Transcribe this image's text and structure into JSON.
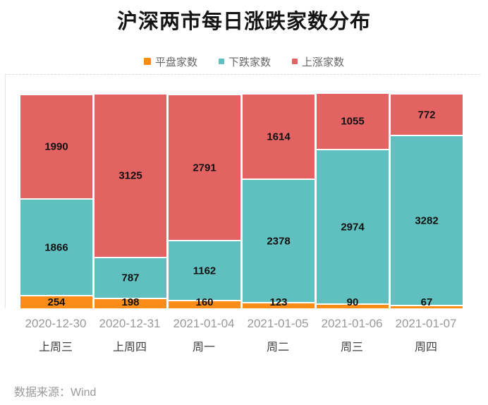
{
  "title": "沪深两市每日涨跌家数分布",
  "source": "数据来源：Wind",
  "legend": [
    {
      "label": "平盘家数",
      "color": "#FA8C17"
    },
    {
      "label": "下跌家数",
      "color": "#60BFBF"
    },
    {
      "label": "上涨家数",
      "color": "#E36363"
    }
  ],
  "chart_data": {
    "type": "bar",
    "stacked": true,
    "title": "沪深两市每日涨跌家数分布",
    "categories": [
      "2020-12-30",
      "2020-12-31",
      "2021-01-04",
      "2021-01-05",
      "2021-01-06",
      "2021-01-07"
    ],
    "weekday_labels": [
      "上周三",
      "上周四",
      "周一",
      "周二",
      "周三",
      "周四"
    ],
    "series": [
      {
        "name": "平盘家数",
        "color": "#FA8C17",
        "values": [
          254,
          198,
          160,
          123,
          90,
          67
        ]
      },
      {
        "name": "下跌家数",
        "color": "#60BFBF",
        "values": [
          1866,
          787,
          1162,
          2378,
          2974,
          3282
        ]
      },
      {
        "name": "上涨家数",
        "color": "#E36363",
        "values": [
          1990,
          3125,
          2791,
          1614,
          1055,
          772
        ]
      }
    ],
    "ylim": [
      0,
      4500
    ],
    "legend_position": "top",
    "grid": "top-dashed-line-only",
    "value_labels": "inside-black-bold"
  }
}
